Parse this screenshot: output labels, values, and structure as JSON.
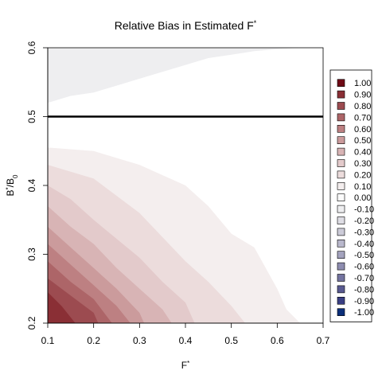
{
  "chart_data": {
    "type": "heatmap",
    "title": "Relative Bias in Estimated F",
    "title_superscript": "*",
    "xlabel": "F",
    "xlabel_superscript": "*",
    "ylabel": "B",
    "ylabel_superscript": "*",
    "ylabel_rest": "/B",
    "ylabel_subscript": "0",
    "xlim": [
      0.1,
      0.7
    ],
    "ylim": [
      0.2,
      0.6
    ],
    "x_ticks": [
      "0.1",
      "0.2",
      "0.3",
      "0.4",
      "0.5",
      "0.6",
      "0.7"
    ],
    "y_ticks": [
      "0.2",
      "0.3",
      "0.4",
      "0.5",
      "0.6"
    ],
    "reference_line": {
      "y": 0.5,
      "color": "#000000"
    },
    "legend": {
      "placement": "right",
      "entries": [
        {
          "label": "1.00",
          "color": "#6f0a16"
        },
        {
          "label": "0.90",
          "color": "#8a2f35"
        },
        {
          "label": "0.80",
          "color": "#9c4b50"
        },
        {
          "label": "0.70",
          "color": "#ad6568"
        },
        {
          "label": "0.60",
          "color": "#bd8082"
        },
        {
          "label": "0.50",
          "color": "#cb9b9c"
        },
        {
          "label": "0.40",
          "color": "#d8b4b5"
        },
        {
          "label": "0.30",
          "color": "#e3cacb"
        },
        {
          "label": "0.20",
          "color": "#ecdcdc"
        },
        {
          "label": "0.10",
          "color": "#f4eeee"
        },
        {
          "label": "0.00",
          "color": "#fbfbfb"
        },
        {
          "label": "-0.10",
          "color": "#eeeef0"
        },
        {
          "label": "-0.20",
          "color": "#dedde4"
        },
        {
          "label": "-0.30",
          "color": "#cccbd8"
        },
        {
          "label": "-0.40",
          "color": "#b9b8cc"
        },
        {
          "label": "-0.50",
          "color": "#a4a3be"
        },
        {
          "label": "-0.60",
          "color": "#8e8db0"
        },
        {
          "label": "-0.70",
          "color": "#7474a0"
        },
        {
          "label": "-0.80",
          "color": "#595a91"
        },
        {
          "label": "-0.90",
          "color": "#3a3f84"
        },
        {
          "label": "-1.00",
          "color": "#0b2f7a"
        }
      ]
    },
    "upper_region": {
      "value": -0.1,
      "boundary": [
        [
          0.1,
          0.52
        ],
        [
          0.15,
          0.53
        ],
        [
          0.2,
          0.535
        ],
        [
          0.25,
          0.545
        ],
        [
          0.3,
          0.555
        ],
        [
          0.35,
          0.565
        ],
        [
          0.4,
          0.575
        ],
        [
          0.45,
          0.585
        ],
        [
          0.5,
          0.59
        ],
        [
          0.55,
          0.595
        ],
        [
          0.6,
          0.598
        ],
        [
          0.65,
          0.6
        ]
      ]
    },
    "series": [
      {
        "value": 0.1,
        "boundary": [
          [
            0.1,
            0.455
          ],
          [
            0.2,
            0.45
          ],
          [
            0.3,
            0.43
          ],
          [
            0.4,
            0.4
          ],
          [
            0.45,
            0.37
          ],
          [
            0.5,
            0.33
          ],
          [
            0.55,
            0.31
          ],
          [
            0.6,
            0.25
          ],
          [
            0.62,
            0.22
          ],
          [
            0.65,
            0.2
          ]
        ]
      },
      {
        "value": 0.2,
        "boundary": [
          [
            0.1,
            0.43
          ],
          [
            0.2,
            0.41
          ],
          [
            0.3,
            0.36
          ],
          [
            0.4,
            0.29
          ],
          [
            0.45,
            0.26
          ],
          [
            0.5,
            0.225
          ],
          [
            0.53,
            0.2
          ]
        ]
      },
      {
        "value": 0.3,
        "boundary": [
          [
            0.1,
            0.4
          ],
          [
            0.15,
            0.38
          ],
          [
            0.2,
            0.35
          ],
          [
            0.3,
            0.295
          ],
          [
            0.35,
            0.26
          ],
          [
            0.4,
            0.23
          ],
          [
            0.42,
            0.2
          ]
        ]
      },
      {
        "value": 0.4,
        "boundary": [
          [
            0.1,
            0.37
          ],
          [
            0.15,
            0.34
          ],
          [
            0.2,
            0.315
          ],
          [
            0.25,
            0.28
          ],
          [
            0.3,
            0.25
          ],
          [
            0.35,
            0.22
          ],
          [
            0.37,
            0.2
          ]
        ]
      },
      {
        "value": 0.5,
        "boundary": [
          [
            0.1,
            0.34
          ],
          [
            0.15,
            0.31
          ],
          [
            0.2,
            0.28
          ],
          [
            0.25,
            0.25
          ],
          [
            0.3,
            0.215
          ],
          [
            0.31,
            0.2
          ]
        ]
      },
      {
        "value": 0.6,
        "boundary": [
          [
            0.1,
            0.315
          ],
          [
            0.15,
            0.285
          ],
          [
            0.2,
            0.255
          ],
          [
            0.25,
            0.225
          ],
          [
            0.28,
            0.2
          ]
        ]
      },
      {
        "value": 0.7,
        "boundary": [
          [
            0.1,
            0.29
          ],
          [
            0.15,
            0.26
          ],
          [
            0.2,
            0.235
          ],
          [
            0.24,
            0.2
          ]
        ]
      },
      {
        "value": 0.8,
        "boundary": [
          [
            0.1,
            0.265
          ],
          [
            0.15,
            0.24
          ],
          [
            0.2,
            0.215
          ],
          [
            0.21,
            0.2
          ]
        ]
      },
      {
        "value": 0.9,
        "boundary": [
          [
            0.1,
            0.245
          ],
          [
            0.13,
            0.225
          ],
          [
            0.16,
            0.2
          ]
        ]
      }
    ]
  }
}
